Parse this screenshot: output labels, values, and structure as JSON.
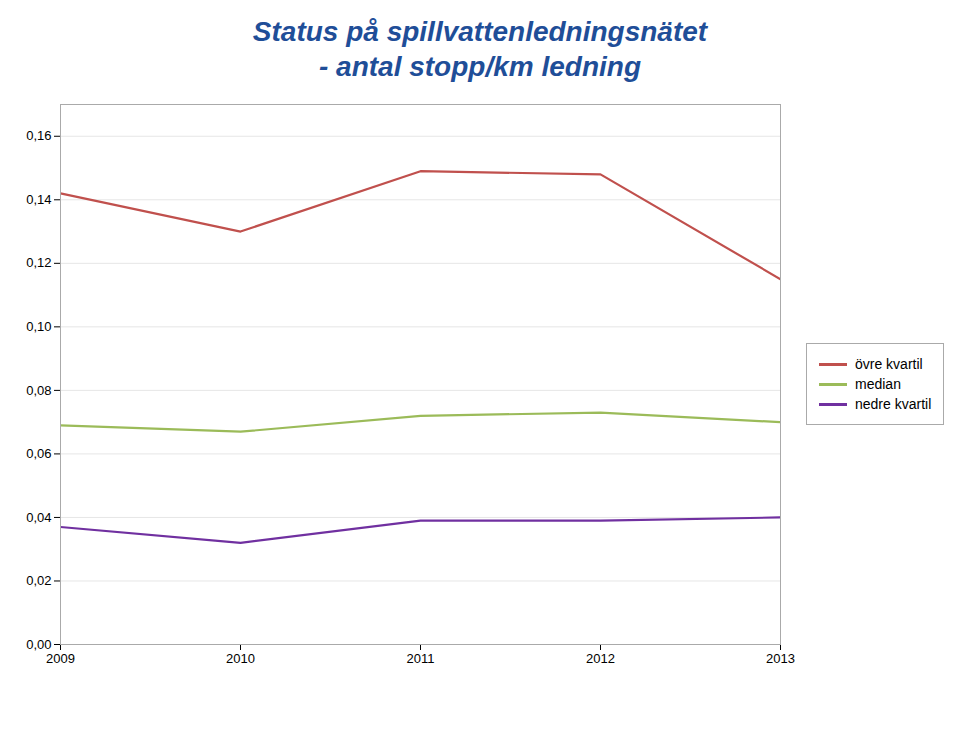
{
  "chart_data": {
    "type": "line",
    "title": "Status på spillvattenledningsnätet",
    "subtitle": "- antal stopp/km ledning",
    "x": [
      2009,
      2010,
      2011,
      2012,
      2013
    ],
    "series": [
      {
        "name": "övre kvartil",
        "color": "#C0504D",
        "values": [
          0.142,
          0.13,
          0.149,
          0.148,
          0.115
        ]
      },
      {
        "name": "median",
        "color": "#9BBB59",
        "values": [
          0.069,
          0.067,
          0.072,
          0.073,
          0.07
        ]
      },
      {
        "name": "nedre kvartil",
        "color": "#7030A0",
        "values": [
          0.037,
          0.032,
          0.039,
          0.039,
          0.04
        ]
      }
    ],
    "xlim": [
      2009,
      2013
    ],
    "xticks": [
      2009,
      2010,
      2011,
      2012,
      2013
    ],
    "ylim": [
      0,
      0.17
    ],
    "yticks": [
      {
        "value": 0.0,
        "label": "0,00"
      },
      {
        "value": 0.02,
        "label": "0,02"
      },
      {
        "value": 0.04,
        "label": "0,04"
      },
      {
        "value": 0.06,
        "label": "0,06"
      },
      {
        "value": 0.08,
        "label": "0,08"
      },
      {
        "value": 0.1,
        "label": "0,10"
      },
      {
        "value": 0.12,
        "label": "0,12"
      },
      {
        "value": 0.14,
        "label": "0,14"
      },
      {
        "value": 0.16,
        "label": "0,16"
      }
    ],
    "grid": true,
    "legend": "right"
  }
}
